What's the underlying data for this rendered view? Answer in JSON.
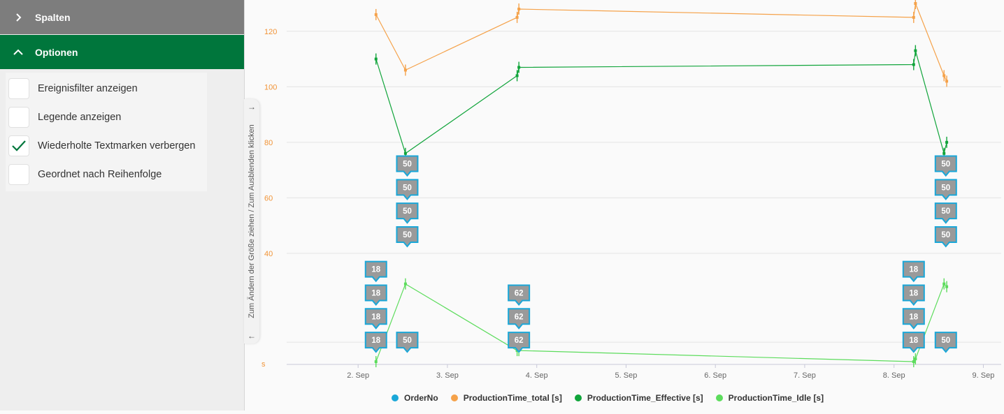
{
  "sidebar": {
    "spalten_label": "Spalten",
    "optionen_label": "Optionen",
    "options": [
      {
        "label": "Ereignisfilter anzeigen",
        "checked": false
      },
      {
        "label": "Legende anzeigen",
        "checked": false
      },
      {
        "label": "Wiederholte Textmarken verbergen",
        "checked": true
      },
      {
        "label": "Geordnet nach Reihenfolge",
        "checked": false
      }
    ]
  },
  "resize_handle_text": "Zum Ändern der Größe ziehen / Zum Ausblenden klicken",
  "colors": {
    "orderno": "#1aa7d8",
    "total": "#f5a24a",
    "effective": "#10a43a",
    "idle": "#5cdc5c",
    "green_header": "#00763c",
    "gray_header": "#7d7d7d",
    "marker_fill": "#9a9a9a",
    "marker_border": "#1aa7d8",
    "axis_text_y": "#f19438"
  },
  "chart_data": {
    "type": "line",
    "x_ticks": [
      "2. Sep",
      "3. Sep",
      "4. Sep",
      "5. Sep",
      "6. Sep",
      "7. Sep",
      "8. Sep",
      "9. Sep"
    ],
    "y_ticks": [
      "120",
      "100",
      "80",
      "60",
      "40"
    ],
    "y_bottom_label": "s",
    "ylim": [
      0,
      130
    ],
    "xlim": [
      1.2,
      9.2
    ],
    "series": [
      {
        "name": "OrderNo",
        "color": "#1aa7d8",
        "points": []
      },
      {
        "name": "ProductionTime_total [s]",
        "color": "#f5a24a",
        "points": [
          [
            2.2,
            126
          ],
          [
            2.53,
            106
          ],
          [
            3.78,
            125
          ],
          [
            3.8,
            128
          ],
          [
            8.22,
            125
          ],
          [
            8.24,
            130
          ],
          [
            8.56,
            104
          ],
          [
            8.59,
            102
          ]
        ]
      },
      {
        "name": "ProductionTime_Effective [s]",
        "color": "#10a43a",
        "points": [
          [
            2.2,
            110
          ],
          [
            2.53,
            76
          ],
          [
            3.78,
            104
          ],
          [
            3.8,
            107
          ],
          [
            8.22,
            108
          ],
          [
            8.24,
            113
          ],
          [
            8.56,
            76
          ],
          [
            8.59,
            80
          ]
        ]
      },
      {
        "name": "ProductionTime_Idle [s]",
        "color": "#5cdc5c",
        "points": [
          [
            2.2,
            1
          ],
          [
            2.53,
            29
          ],
          [
            3.78,
            5
          ],
          [
            3.8,
            5
          ],
          [
            8.22,
            1
          ],
          [
            8.24,
            2
          ],
          [
            8.56,
            29
          ],
          [
            8.59,
            28
          ]
        ]
      }
    ],
    "order_markers": [
      {
        "x": 2.2,
        "value": "18",
        "y": [
          4,
          12.5,
          21,
          29.5
        ]
      },
      {
        "x": 2.55,
        "value": "50",
        "y": [
          4,
          42,
          50.5,
          59,
          67.5
        ]
      },
      {
        "x": 3.8,
        "value": "62",
        "y": [
          4,
          12.5,
          21
        ]
      },
      {
        "x": 8.22,
        "value": "18",
        "y": [
          4,
          12.5,
          21,
          29.5
        ]
      },
      {
        "x": 8.58,
        "value": "50",
        "y": [
          4,
          42,
          50.5,
          59,
          67.5
        ]
      }
    ]
  }
}
